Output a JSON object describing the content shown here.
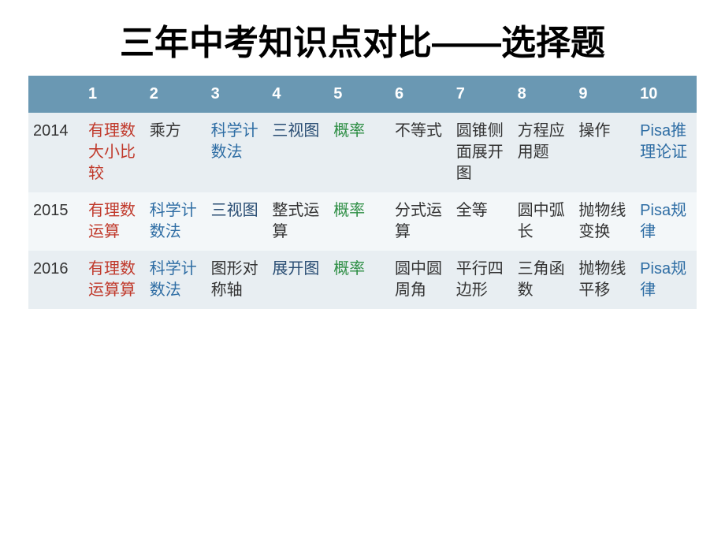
{
  "title": "三年中考知识点对比——选择题",
  "table": {
    "header_bg": "#6a98b3",
    "row_odd_bg": "#e8eef2",
    "row_even_bg": "#f3f7f9",
    "colors": {
      "red": "#c0392b",
      "blue": "#2e6da4",
      "navy": "#2a4e74",
      "green": "#2f8f46",
      "black": "#333333",
      "white": "#ffffff"
    },
    "columns": [
      "",
      "1",
      "2",
      "3",
      "4",
      "5",
      "6",
      "7",
      "8",
      "9",
      "10"
    ],
    "rows": [
      {
        "year": "2014",
        "cells": [
          {
            "text": "有理数大小比较",
            "color": "red"
          },
          {
            "text": "乘方",
            "color": "black"
          },
          {
            "text": "科学计数法",
            "color": "blue"
          },
          {
            "text": "三视图",
            "color": "navy"
          },
          {
            "text": "概率",
            "color": "green"
          },
          {
            "text": "不等式",
            "color": "black"
          },
          {
            "text": "圆锥侧面展开图",
            "color": "black"
          },
          {
            "text": "方程应用题",
            "color": "black"
          },
          {
            "text": "操作",
            "color": "black"
          },
          {
            "text": "Pisa推理论证",
            "color": "blue"
          }
        ]
      },
      {
        "year": "2015",
        "cells": [
          {
            "text": "有理数运算",
            "color": "red"
          },
          {
            "text": "科学计数法",
            "color": "blue"
          },
          {
            "text": "三视图",
            "color": "navy"
          },
          {
            "text": "整式运算",
            "color": "black"
          },
          {
            "text": "概率",
            "color": "green"
          },
          {
            "text": "分式运算",
            "color": "black"
          },
          {
            "text": "全等",
            "color": "black"
          },
          {
            "text": "圆中弧长",
            "color": "black"
          },
          {
            "text": "抛物线变换",
            "color": "black"
          },
          {
            "text": "Pisa规律",
            "color": "blue"
          }
        ]
      },
      {
        "year": "2016",
        "cells": [
          {
            "text": "有理数运算算",
            "color": "red"
          },
          {
            "text": "科学计数法",
            "color": "blue"
          },
          {
            "text": "图形对称轴",
            "color": "black"
          },
          {
            "text": "展开图",
            "color": "navy"
          },
          {
            "text": "概率",
            "color": "green"
          },
          {
            "text": "圆中圆周角",
            "color": "black"
          },
          {
            "text": "平行四边形",
            "color": "black"
          },
          {
            "text": "三角函数",
            "color": "black"
          },
          {
            "text": "抛物线平移",
            "color": "black"
          },
          {
            "text": "Pisa规律",
            "color": "blue"
          }
        ]
      }
    ]
  }
}
